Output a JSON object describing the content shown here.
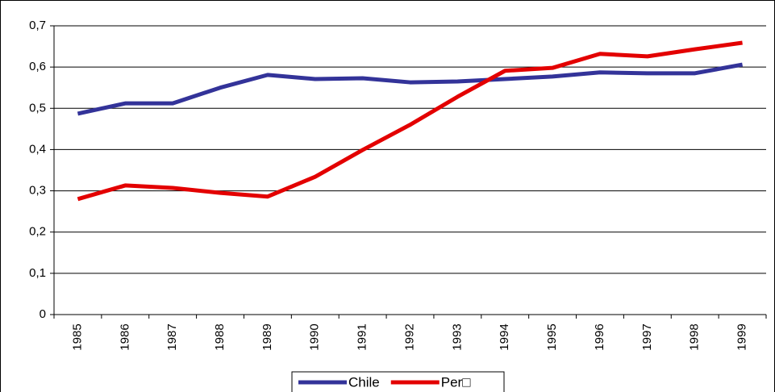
{
  "chart_data": {
    "type": "line",
    "categories": [
      "1985",
      "1986",
      "1987",
      "1988",
      "1989",
      "1990",
      "1991",
      "1992",
      "1993",
      "1994",
      "1995",
      "1996",
      "1997",
      "1998",
      "1999"
    ],
    "series": [
      {
        "name": "Chile",
        "color": "#333399",
        "values": [
          0.487,
          0.512,
          0.512,
          0.55,
          0.581,
          0.571,
          0.573,
          0.563,
          0.565,
          0.571,
          0.577,
          0.587,
          0.585,
          0.585,
          0.606
        ]
      },
      {
        "name": "Per□",
        "color": "#e30000",
        "values": [
          0.28,
          0.313,
          0.307,
          0.295,
          0.286,
          0.334,
          0.399,
          0.46,
          0.528,
          0.591,
          0.598,
          0.632,
          0.626,
          0.643,
          0.659
        ]
      }
    ],
    "ylim": [
      0,
      0.7
    ],
    "yticks": [
      0,
      {
        "value": 0.1,
        "label": "0,1"
      },
      {
        "value": 0.2,
        "label": "0,2"
      },
      {
        "value": 0.3,
        "label": "0,3"
      },
      {
        "value": 0.4,
        "label": "0,4"
      },
      {
        "value": 0.5,
        "label": "0,5"
      },
      {
        "value": 0.6,
        "label": "0,6"
      },
      {
        "value": 0.7,
        "label": "0,7"
      }
    ],
    "grid": true,
    "legend": "bottom"
  }
}
